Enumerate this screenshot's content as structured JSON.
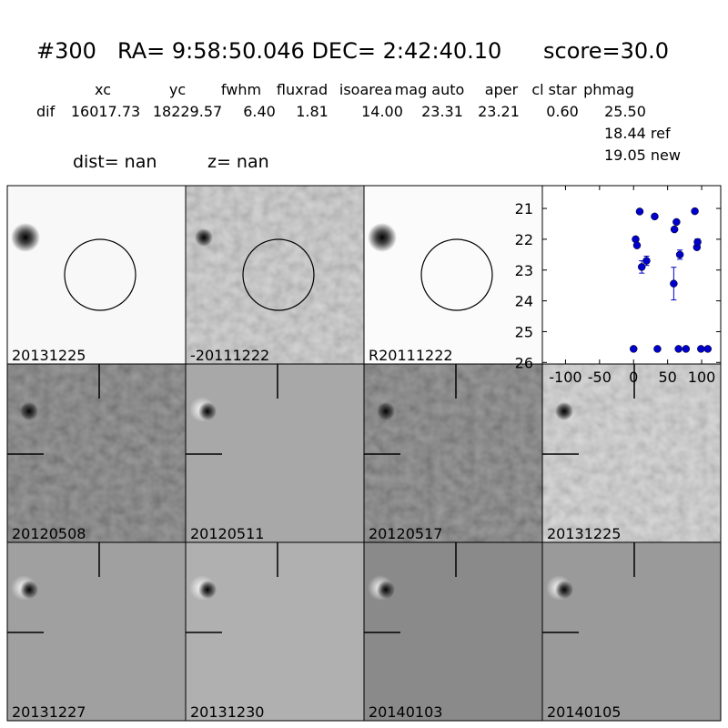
{
  "header": {
    "id": "#300",
    "coords": "RA= 9:58:50.046 DEC= 2:42:40.10",
    "score": "score=30.0",
    "columns": [
      "xc",
      "yc",
      "fwhm",
      "fluxrad",
      "isoarea",
      "mag auto",
      "aper",
      "cl star",
      "phmag"
    ],
    "row_label": "dif",
    "row": [
      "16017.73",
      "18229.57",
      "6.40",
      "1.81",
      "14.00",
      "23.31",
      "23.21",
      "0.60",
      "25.50"
    ],
    "ref": "18.44 ref",
    "new": "19.05 new",
    "dist": "dist=   nan",
    "z": "z=   nan"
  },
  "panels": [
    {
      "label": "20131225"
    },
    {
      "label": "-20111222"
    },
    {
      "label": "R20111222"
    },
    {
      "label": "20120508"
    },
    {
      "label": "20120511"
    },
    {
      "label": "20120517"
    },
    {
      "label": "20131225",
      "color": "#ff0000"
    },
    {
      "label": "20131227"
    },
    {
      "label": "20131230"
    },
    {
      "label": "20140103"
    },
    {
      "label": "20140105"
    }
  ],
  "chart_data": {
    "type": "scatter",
    "color": "#0000cc",
    "x": [
      0,
      3,
      5,
      9,
      12,
      19,
      31,
      35,
      59,
      60,
      63,
      66,
      68,
      77,
      90,
      93,
      94,
      99,
      109
    ],
    "y": [
      25.56,
      22.0,
      22.2,
      21.1,
      22.9,
      22.7,
      21.26,
      25.56,
      23.44,
      21.68,
      21.44,
      25.56,
      22.5,
      25.56,
      21.09,
      22.26,
      22.09,
      25.56,
      25.56
    ],
    "errors": [
      null,
      null,
      null,
      null,
      0.2,
      0.15,
      null,
      null,
      0.53,
      null,
      null,
      null,
      0.15,
      null,
      null,
      null,
      0.1,
      null,
      null
    ],
    "xlim": [
      -134,
      128
    ],
    "ylim": [
      26.05,
      20.26
    ],
    "xticks": [
      -100,
      -50,
      0,
      50,
      100
    ],
    "yticks": [
      21,
      22,
      23,
      24,
      25,
      26
    ]
  }
}
